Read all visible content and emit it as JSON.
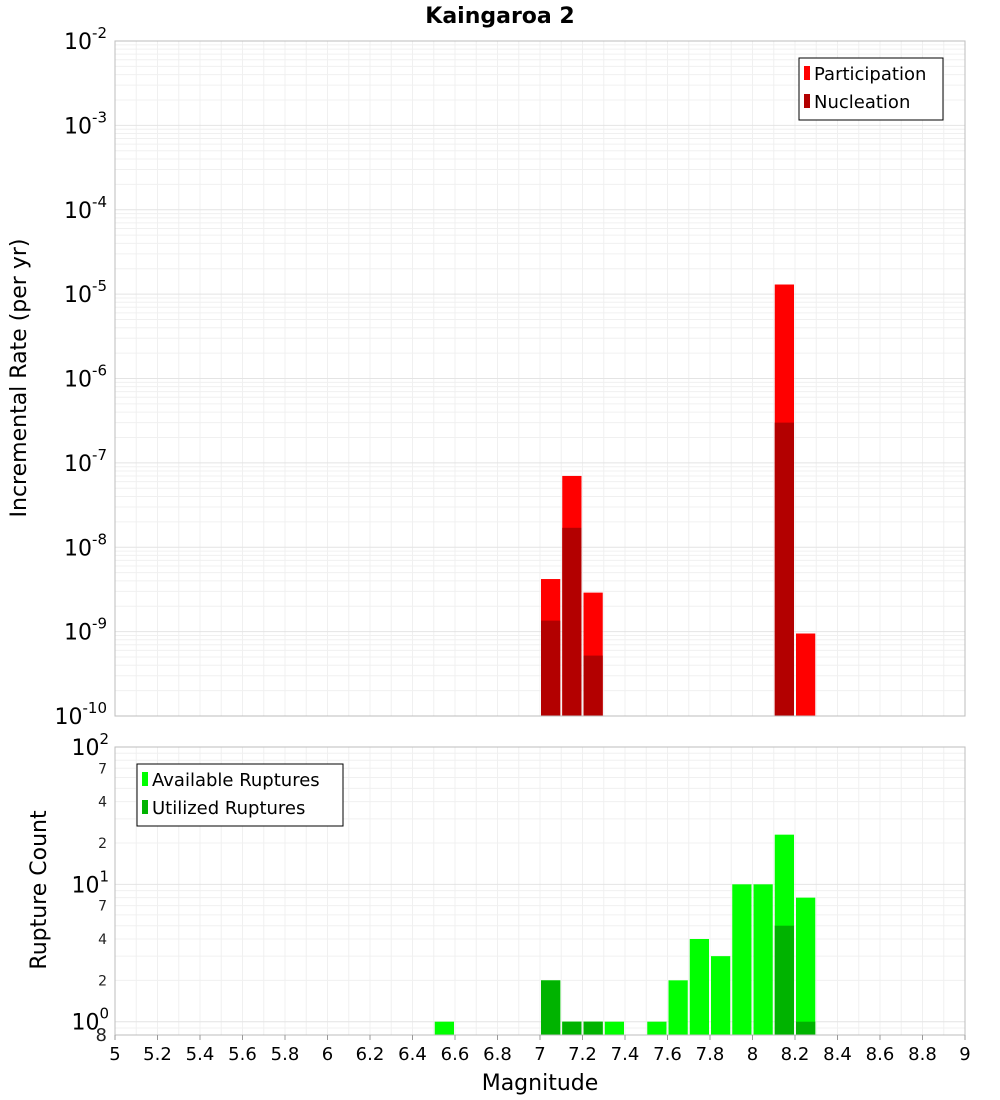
{
  "chart_data": [
    {
      "type": "bar",
      "title": "Kaingaroa 2",
      "xlabel": "",
      "ylabel": "Incremental Rate (per yr)",
      "xlim": [
        5,
        9
      ],
      "ylim": [
        1e-10,
        0.01
      ],
      "y_scale": "log",
      "grid": true,
      "legend_position": "top-right",
      "bin_width": 0.1,
      "series": [
        {
          "name": "Participation",
          "color": "#ff0000",
          "points": [
            {
              "x": 7.05,
              "y": 4.2e-09
            },
            {
              "x": 7.15,
              "y": 7e-08
            },
            {
              "x": 7.25,
              "y": 2.9e-09
            },
            {
              "x": 8.15,
              "y": 1.3e-05
            },
            {
              "x": 8.25,
              "y": 9.5e-10
            }
          ]
        },
        {
          "name": "Nucleation",
          "color": "#b30000",
          "points": [
            {
              "x": 7.05,
              "y": 1.35e-09
            },
            {
              "x": 7.15,
              "y": 1.7e-08
            },
            {
              "x": 7.25,
              "y": 5.2e-10
            },
            {
              "x": 8.15,
              "y": 3e-07
            }
          ]
        }
      ]
    },
    {
      "type": "bar",
      "title": "",
      "xlabel": "Magnitude",
      "ylabel": "Rupture Count",
      "xlim": [
        5,
        9
      ],
      "ylim": [
        0.8,
        100
      ],
      "y_scale": "log",
      "grid": true,
      "legend_position": "top-left",
      "bin_width": 0.1,
      "x_ticks": [
        "5",
        "5.2",
        "5.4",
        "5.6",
        "5.8",
        "6",
        "6.2",
        "6.4",
        "6.6",
        "6.8",
        "7",
        "7.2",
        "7.4",
        "7.6",
        "7.8",
        "8",
        "8.2",
        "8.4",
        "8.6",
        "8.8",
        "9"
      ],
      "series": [
        {
          "name": "Available Ruptures",
          "color": "#00ff00",
          "points": [
            {
              "x": 6.55,
              "y": 1
            },
            {
              "x": 7.05,
              "y": 2
            },
            {
              "x": 7.15,
              "y": 1
            },
            {
              "x": 7.25,
              "y": 1
            },
            {
              "x": 7.35,
              "y": 1
            },
            {
              "x": 7.55,
              "y": 1
            },
            {
              "x": 7.65,
              "y": 2
            },
            {
              "x": 7.75,
              "y": 4
            },
            {
              "x": 7.85,
              "y": 3
            },
            {
              "x": 7.95,
              "y": 10
            },
            {
              "x": 8.05,
              "y": 10
            },
            {
              "x": 8.15,
              "y": 23
            },
            {
              "x": 8.25,
              "y": 8
            }
          ]
        },
        {
          "name": "Utilized Ruptures",
          "color": "#00b300",
          "points": [
            {
              "x": 7.05,
              "y": 2
            },
            {
              "x": 7.15,
              "y": 1
            },
            {
              "x": 7.25,
              "y": 1
            },
            {
              "x": 8.15,
              "y": 5
            },
            {
              "x": 8.25,
              "y": 1
            }
          ]
        }
      ]
    }
  ]
}
